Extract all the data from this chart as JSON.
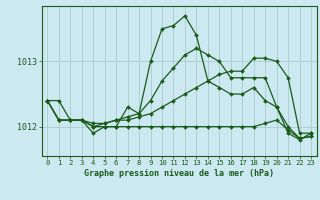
{
  "title": "Graphe pression niveau de la mer (hPa)",
  "bg_color": "#cce8f0",
  "grid_color": "#aacccc",
  "line_color": "#1a5c1a",
  "xlim": [
    -0.5,
    23.5
  ],
  "ylim": [
    1011.55,
    1013.85
  ],
  "yticks": [
    1012,
    1013
  ],
  "xticks": [
    0,
    1,
    2,
    3,
    4,
    5,
    6,
    7,
    8,
    9,
    10,
    11,
    12,
    13,
    14,
    15,
    16,
    17,
    18,
    19,
    20,
    21,
    22,
    23
  ],
  "series": [
    {
      "x": [
        0,
        1,
        2,
        3,
        4,
        5,
        6,
        7,
        8,
        9,
        10,
        11,
        12,
        13,
        14,
        15,
        16,
        17,
        18,
        19,
        20,
        21,
        22,
        23
      ],
      "y": [
        1012.4,
        1012.4,
        1012.1,
        1012.1,
        1011.9,
        1012.0,
        1012.0,
        1012.3,
        1012.2,
        1013.0,
        1013.5,
        1013.55,
        1013.7,
        1013.4,
        1012.7,
        1012.6,
        1012.5,
        1012.5,
        1012.6,
        1012.4,
        1012.3,
        1011.9,
        1011.8,
        1011.9
      ]
    },
    {
      "x": [
        0,
        1,
        2,
        3,
        4,
        5,
        6,
        7,
        8,
        9,
        10,
        11,
        12,
        13,
        14,
        15,
        16,
        17,
        18,
        19,
        20,
        21,
        22,
        23
      ],
      "y": [
        1012.4,
        1012.1,
        1012.1,
        1012.1,
        1012.05,
        1012.05,
        1012.1,
        1012.1,
        1012.15,
        1012.2,
        1012.3,
        1012.4,
        1012.5,
        1012.6,
        1012.7,
        1012.8,
        1012.85,
        1012.85,
        1013.05,
        1013.05,
        1013.0,
        1012.75,
        1011.9,
        1011.9
      ]
    },
    {
      "x": [
        0,
        1,
        2,
        3,
        4,
        5,
        6,
        7,
        8,
        9,
        10,
        11,
        12,
        13,
        14,
        15,
        16,
        17,
        18,
        19,
        20,
        21,
        22,
        23
      ],
      "y": [
        1012.4,
        1012.1,
        1012.1,
        1012.1,
        1012.0,
        1012.0,
        1012.0,
        1012.0,
        1012.0,
        1012.0,
        1012.0,
        1012.0,
        1012.0,
        1012.0,
        1012.0,
        1012.0,
        1012.0,
        1012.0,
        1012.0,
        1012.05,
        1012.1,
        1011.95,
        1011.82,
        1011.85
      ]
    },
    {
      "x": [
        0,
        1,
        2,
        3,
        4,
        5,
        6,
        7,
        8,
        9,
        10,
        11,
        12,
        13,
        14,
        15,
        16,
        17,
        18,
        19,
        20,
        21,
        22,
        23
      ],
      "y": [
        1012.4,
        1012.1,
        1012.1,
        1012.1,
        1012.0,
        1012.05,
        1012.1,
        1012.15,
        1012.2,
        1012.4,
        1012.7,
        1012.9,
        1013.1,
        1013.2,
        1013.1,
        1013.0,
        1012.75,
        1012.75,
        1012.75,
        1012.75,
        1012.3,
        1012.0,
        1011.82,
        1011.85
      ]
    }
  ]
}
